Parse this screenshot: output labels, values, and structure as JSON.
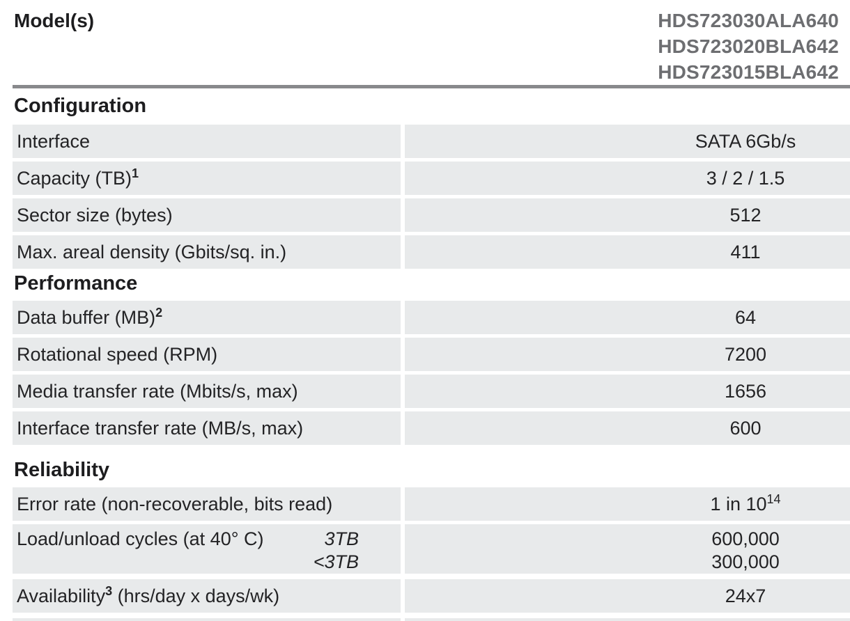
{
  "colors": {
    "row_background": "#e8eaeb",
    "model_text": "#6d6e71",
    "divider_rule": "#88898c",
    "body_text": "#232325"
  },
  "header": {
    "label": "Model(s)",
    "models": [
      "HDS723030ALA640",
      "HDS723020BLA642",
      "HDS723015BLA642"
    ]
  },
  "sections": [
    {
      "title": "Configuration",
      "rows": [
        {
          "label": "Interface",
          "value": "SATA 6Gb/s"
        },
        {
          "label": "Capacity (TB)",
          "label_sup": "1",
          "value": "3 / 2 / 1.5"
        },
        {
          "label": "Sector size (bytes)",
          "value": "512"
        },
        {
          "label": "Max. areal density (Gbits/sq. in.)",
          "value": "411"
        }
      ]
    },
    {
      "title": "Performance",
      "rows": [
        {
          "label": "Data buffer (MB)",
          "label_sup": "2",
          "value": "64"
        },
        {
          "label": "Rotational speed (RPM)",
          "value": "7200"
        },
        {
          "label": "Media transfer rate (Mbits/s, max)",
          "value": "1656"
        },
        {
          "label": "Interface transfer rate (MB/s, max)",
          "value": "600"
        }
      ]
    },
    {
      "title": "Reliability",
      "rows": [
        {
          "label": "Error rate (non-recoverable, bits read)",
          "value": "1 in 10",
          "value_sup": "14"
        },
        {
          "label": "Load/unload cycles (at 40° C)",
          "sub_label_1": "3TB",
          "sub_label_2": "<3TB",
          "value_1": "600,000",
          "value_2": "300,000"
        },
        {
          "label": "Availability",
          "label_sup": "3",
          "label_rest": " (hrs/day x days/wk)",
          "value": "24x7"
        }
      ]
    }
  ]
}
